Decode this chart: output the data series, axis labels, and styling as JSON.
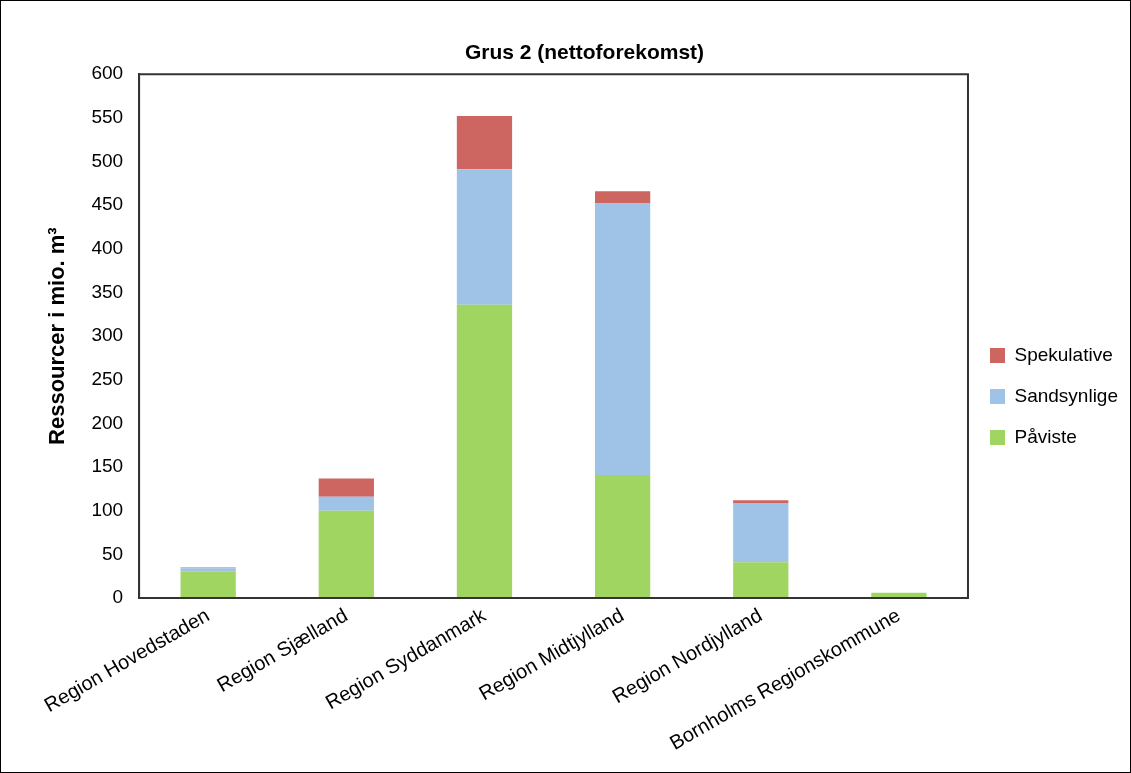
{
  "chart_data": {
    "type": "bar",
    "title": "Grus 2 (nettoforekomst)",
    "ylabel": "Ressourcer i mio. m³",
    "categories": [
      "Region Hovedstaden",
      "Region Sjælland",
      "Region Syddanmark",
      "Region Midtjylland",
      "Region Nordjylland",
      "Bornholms Regionskommune"
    ],
    "series": [
      {
        "name": "Påviste",
        "color": "#a0d562",
        "values": [
          30,
          100,
          336,
          141,
          41,
          6
        ]
      },
      {
        "name": "Sandsynlige",
        "color": "#9fc2e7",
        "values": [
          4,
          16,
          155,
          311,
          68,
          0
        ]
      },
      {
        "name": "Spekulative",
        "color": "#cd6660",
        "values": [
          1,
          21,
          61,
          14,
          3,
          0
        ]
      }
    ],
    "stacked": true,
    "ylim": [
      0,
      600
    ],
    "yticks": [
      0,
      50,
      100,
      150,
      200,
      250,
      300,
      350,
      400,
      450,
      500,
      550,
      600
    ],
    "grid": false,
    "legend": "right"
  }
}
